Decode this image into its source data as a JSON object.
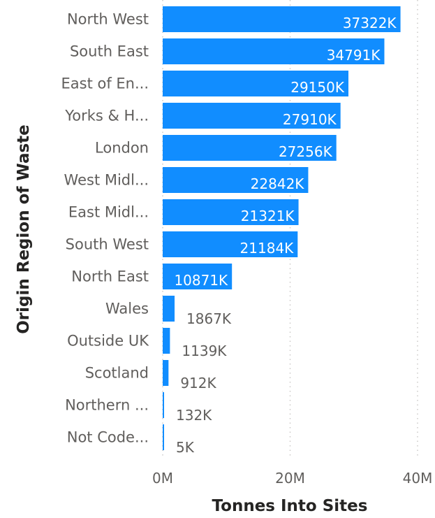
{
  "chart_data": {
    "type": "bar",
    "orientation": "horizontal",
    "title": "",
    "xlabel": "Tonnes Into Sites",
    "ylabel": "Origin Region of Waste",
    "categories": [
      "North West",
      "South East",
      "East of En...",
      "Yorks & H...",
      "London",
      "West Midl...",
      "East Midl...",
      "South West",
      "North East",
      "Wales",
      "Outside UK",
      "Scotland",
      "Northern ...",
      "Not Code..."
    ],
    "values": [
      37322000,
      34791000,
      29150000,
      27910000,
      27256000,
      22842000,
      21321000,
      21184000,
      10871000,
      1867000,
      1139000,
      912000,
      132000,
      5000
    ],
    "value_labels": [
      "37322K",
      "34791K",
      "29150K",
      "27910K",
      "27256K",
      "22842K",
      "21321K",
      "21184K",
      "10871K",
      "1867K",
      "1139K",
      "912K",
      "132K",
      "5K"
    ],
    "xlim": [
      0,
      40000000
    ],
    "xticks": [
      {
        "value": 0,
        "label": "0M"
      },
      {
        "value": 20000000,
        "label": "20M"
      },
      {
        "value": 40000000,
        "label": "40M"
      }
    ],
    "grid": true,
    "legend": "none",
    "bar_color": "#118DFF",
    "inside_label_color": "#ffffff",
    "outside_label_color": "#605e5c"
  }
}
